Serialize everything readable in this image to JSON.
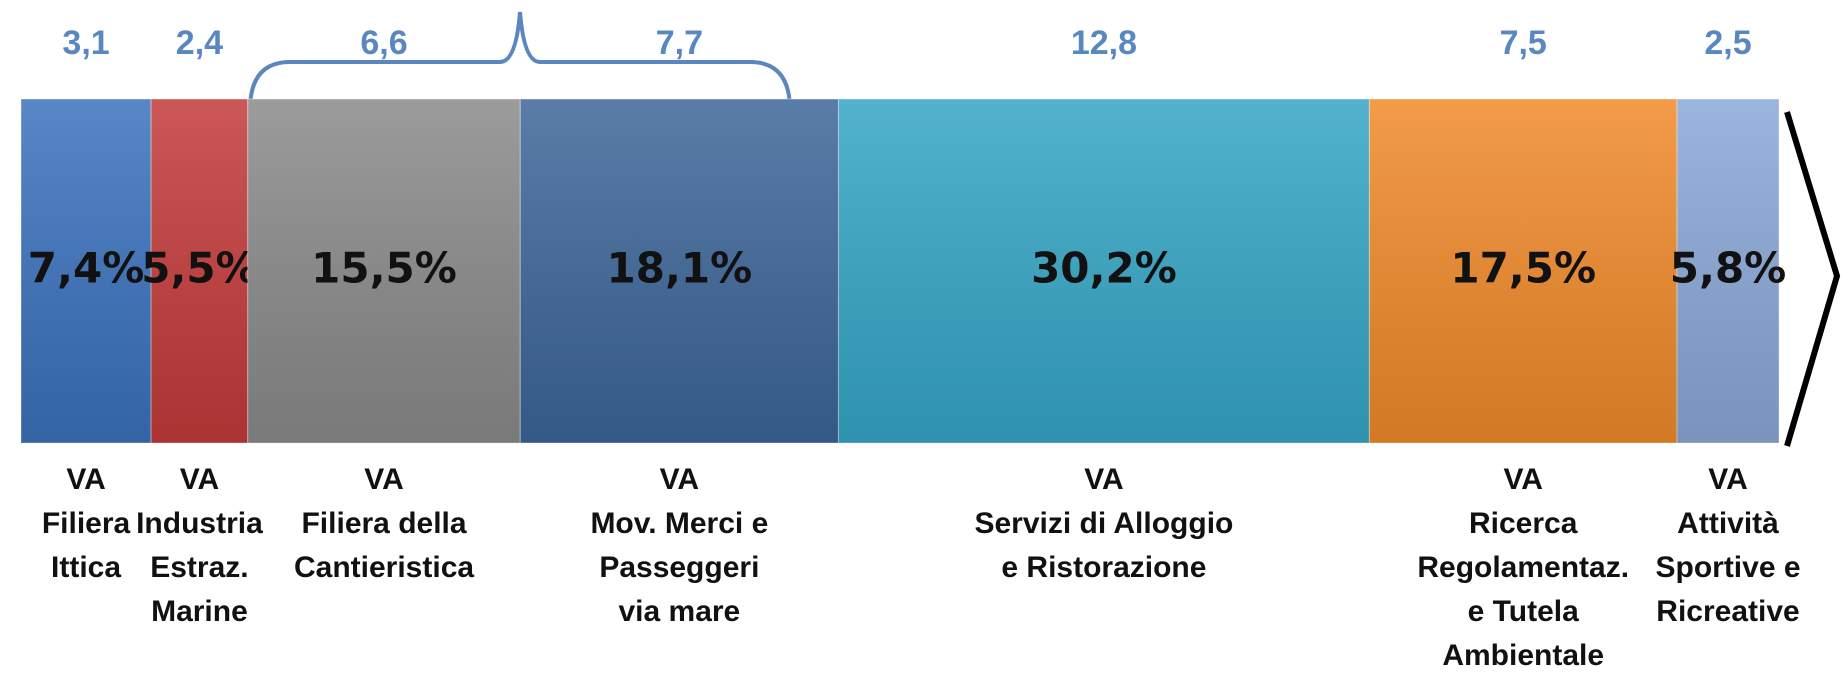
{
  "chart_data": {
    "type": "stacked-bar-100",
    "xlim": [
      0,
      100
    ],
    "categories": [
      [
        "VA",
        "Filiera",
        "Ittica"
      ],
      [
        "VA",
        "Industria",
        "Estraz.",
        "Marine"
      ],
      [
        "VA",
        "Filiera della",
        "Cantieristica"
      ],
      [
        "VA",
        "Mov. Merci e",
        "Passeggeri",
        "via mare"
      ],
      [
        "VA",
        "Servizi di Alloggio",
        "e Ristorazione"
      ],
      [
        "VA",
        "Ricerca",
        "Regolamentaz.",
        "e Tutela",
        "Ambientale"
      ],
      [
        "VA",
        "Attività",
        "Sportive e",
        "Ricreative"
      ]
    ],
    "values": [
      7.4,
      5.5,
      15.5,
      18.1,
      30.2,
      17.5,
      5.8
    ],
    "value_labels": [
      "7,4%",
      "5,5%",
      "15,5%",
      "18,1%",
      "30,2%",
      "17,5%",
      "5,8%"
    ],
    "top_values": [
      3.1,
      2.4,
      6.6,
      7.7,
      12.8,
      7.5,
      2.5
    ],
    "top_value_labels": [
      "3,1",
      "2,4",
      "6,6",
      "7,7",
      "12,8",
      "7,5",
      "2,5"
    ],
    "colors": [
      "#3a72bd",
      "#c43a3a",
      "#8a8a8a",
      "#3d6699",
      "#35a6c6",
      "#f08a2a",
      "#8aa8d8"
    ]
  }
}
